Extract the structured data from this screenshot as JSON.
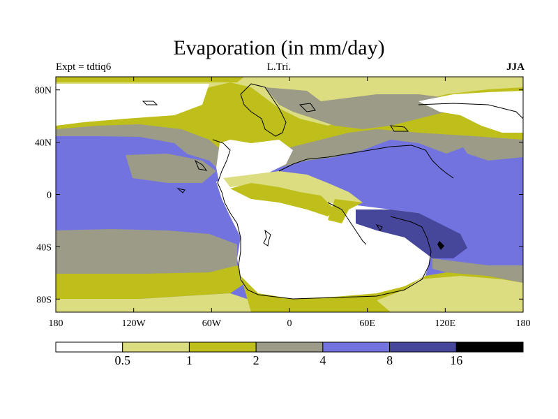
{
  "header": {
    "title": "Evaporation (in mm/day)",
    "left": "Expt = tdtiq6",
    "center": "L.Tri.",
    "right": "JJA"
  },
  "map": {
    "x_ticks": [
      {
        "lon": -180,
        "label": "180"
      },
      {
        "lon": -120,
        "label": "120W"
      },
      {
        "lon": -60,
        "label": "60W"
      },
      {
        "lon": 0,
        "label": "0"
      },
      {
        "lon": 60,
        "label": "60E"
      },
      {
        "lon": 120,
        "label": "120E"
      },
      {
        "lon": 180,
        "label": "180"
      }
    ],
    "y_ticks": [
      {
        "lat": 80,
        "label": "80N"
      },
      {
        "lat": 40,
        "label": "40N"
      },
      {
        "lat": 0,
        "label": "0"
      },
      {
        "lat": -40,
        "label": "40S"
      },
      {
        "lat": -80,
        "label": "80S"
      }
    ]
  },
  "colorbar": {
    "colors": [
      "#ffffff",
      "#dcdc80",
      "#bfbf1c",
      "#9b9b87",
      "#7373e0",
      "#46469a",
      "#000000"
    ],
    "labels": [
      "0.5",
      "1",
      "2",
      "4",
      "8",
      "16"
    ]
  }
}
